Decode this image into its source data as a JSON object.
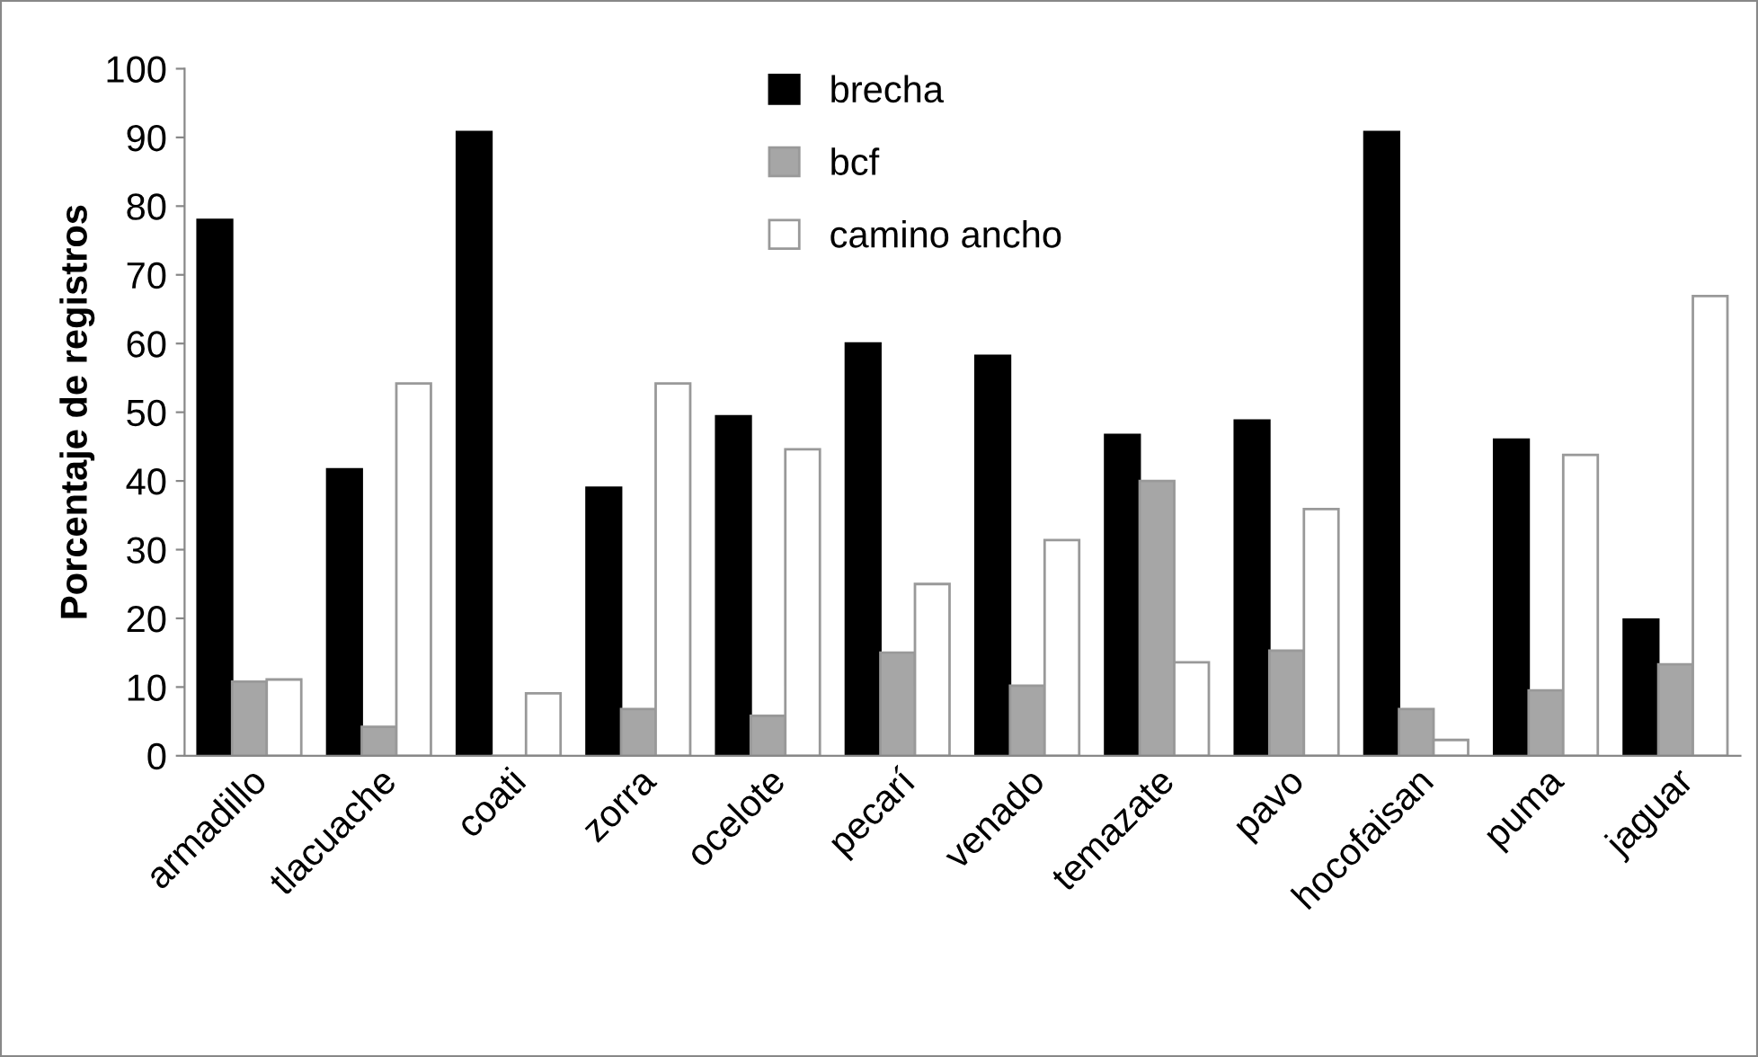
{
  "chart_data": {
    "type": "bar",
    "ylabel": "Porcentaje de registros",
    "categories": [
      "armadillo",
      "tlacuache",
      "coati",
      "zorra",
      "ocelote",
      "pecarí",
      "venado",
      "temazate",
      "pavo",
      "hocofaisan",
      "puma",
      "jaguar"
    ],
    "series": [
      {
        "name": "brecha",
        "color": "#000000",
        "values": [
          78,
          41.7,
          90.8,
          39,
          49.4,
          60,
          58.2,
          46.7,
          48.8,
          90.8,
          46,
          19.8
        ]
      },
      {
        "name": "bcf",
        "color": "#a6a6a6",
        "values": [
          10.8,
          4.2,
          0,
          6.8,
          5.8,
          15,
          10.2,
          40,
          15.3,
          6.8,
          9.5,
          13.3
        ]
      },
      {
        "name": "camino ancho",
        "color": "#ffffff",
        "values": [
          11.1,
          54.2,
          9.1,
          54.2,
          44.6,
          25,
          31.4,
          13.6,
          35.9,
          2.3,
          43.8,
          66.9
        ]
      }
    ],
    "ylim": [
      0,
      100
    ],
    "yticks": [
      0,
      10,
      20,
      30,
      40,
      50,
      60,
      70,
      80,
      90,
      100
    ],
    "grid": false,
    "legend": "top"
  }
}
